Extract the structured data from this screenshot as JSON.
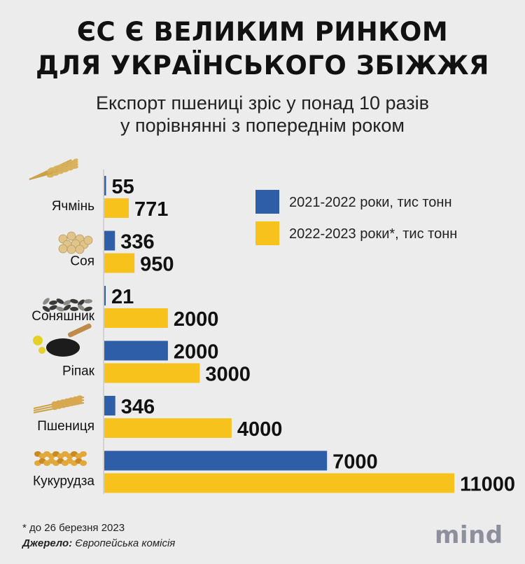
{
  "title_line1": "ЄС Є ВЕЛИКИМ РИНКОМ",
  "title_line2": "ДЛЯ УКРАЇНСЬКОГО ЗБІЖЖЯ",
  "subtitle_line1": "Експорт пшениці зріс у понад 10 разів",
  "subtitle_line2": "у порівнянні з попереднім роком",
  "chart_data": {
    "type": "bar",
    "orientation": "horizontal",
    "categories": [
      "Ячмінь",
      "Соя",
      "Соняшник",
      "Ріпак",
      "Пшениця",
      "Кукурудза"
    ],
    "series": [
      {
        "name": "2021-2022 роки, тис тонн",
        "values": [
          55,
          336,
          21,
          2000,
          346,
          7000
        ],
        "color": "#2f5ea8"
      },
      {
        "name": "2022-2023 роки*, тис тонн",
        "values": [
          771,
          950,
          2000,
          3000,
          4000,
          11000
        ],
        "color": "#f7c21c"
      }
    ],
    "xlim": [
      0,
      11000
    ],
    "grid": false,
    "legend": "top-right",
    "category_icons": [
      "barley-icon",
      "soy-icon",
      "sunflower-seeds-icon",
      "rapeseed-icon",
      "wheat-icon",
      "corn-icon"
    ]
  },
  "footnote": "* до 26 березня 2023",
  "source_label": "Джерело:",
  "source_value": "Європейська комісія",
  "logo": "mind"
}
